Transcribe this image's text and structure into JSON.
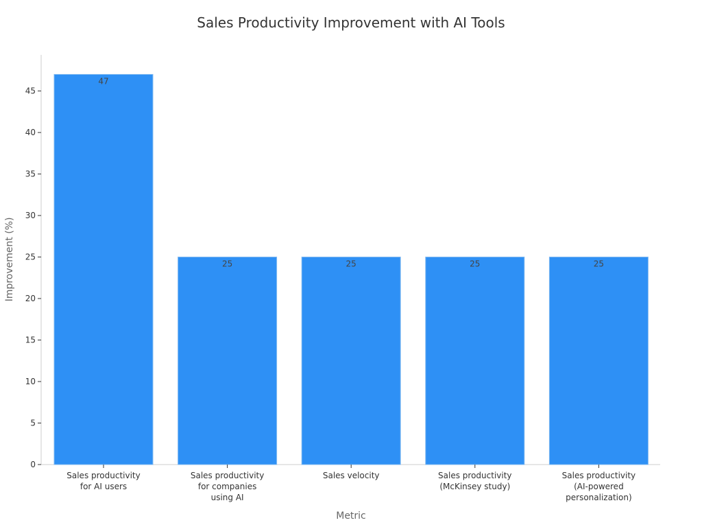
{
  "chart_data": {
    "type": "bar",
    "title": "Sales Productivity Improvement with AI Tools",
    "xlabel": "Metric",
    "ylabel": "Improvement (%)",
    "categories": [
      [
        "Sales productivity",
        "for AI users"
      ],
      [
        "Sales productivity",
        "for companies",
        "using AI"
      ],
      [
        "Sales velocity"
      ],
      [
        "Sales productivity",
        "(McKinsey study)"
      ],
      [
        "Sales productivity",
        "(AI-powered",
        "personalization)"
      ]
    ],
    "values": [
      47,
      25,
      25,
      25,
      25
    ],
    "ylim": [
      0,
      49.35
    ],
    "yticks": [
      0,
      5,
      10,
      15,
      20,
      25,
      30,
      35,
      40,
      45
    ],
    "bar_color": "#2E90F5",
    "grid": false,
    "legend": "none"
  }
}
